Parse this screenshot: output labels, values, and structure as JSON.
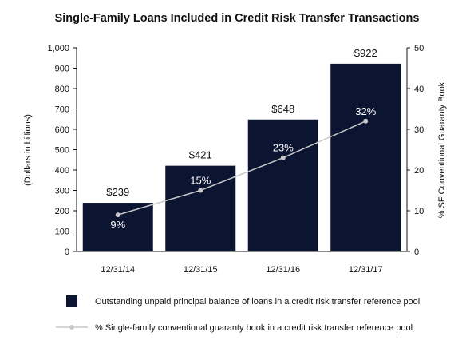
{
  "chart_data": {
    "type": "bar",
    "title": "Single-Family Loans Included in Credit Risk Transfer Transactions",
    "categories": [
      "12/31/14",
      "12/31/15",
      "12/31/16",
      "12/31/17"
    ],
    "series": [
      {
        "name": "Outstanding unpaid principal balance of loans in a credit risk transfer reference pool",
        "type": "bar",
        "axis": "left",
        "values": [
          239,
          421,
          648,
          922
        ],
        "labels": [
          "$239",
          "$421",
          "$648",
          "$922"
        ],
        "color": "#0b1430"
      },
      {
        "name": "% Single-family conventional guaranty book in a credit risk transfer reference pool",
        "type": "line",
        "axis": "right",
        "values": [
          9,
          15,
          23,
          32
        ],
        "labels": [
          "9%",
          "15%",
          "23%",
          "32%"
        ],
        "color": "#c8c8c8"
      }
    ],
    "ylabel": "(Dollars in billions)",
    "ylim": [
      0,
      1000
    ],
    "yticks": [
      "0",
      "100",
      "200",
      "300",
      "400",
      "500",
      "600",
      "700",
      "800",
      "900",
      "1,000"
    ],
    "y2label": "% SF Conventional Guaranty Book",
    "y2lim": [
      0,
      50
    ],
    "y2ticks": [
      "0",
      "10",
      "20",
      "30",
      "40",
      "50"
    ],
    "grid": false,
    "legend_position": "bottom"
  }
}
